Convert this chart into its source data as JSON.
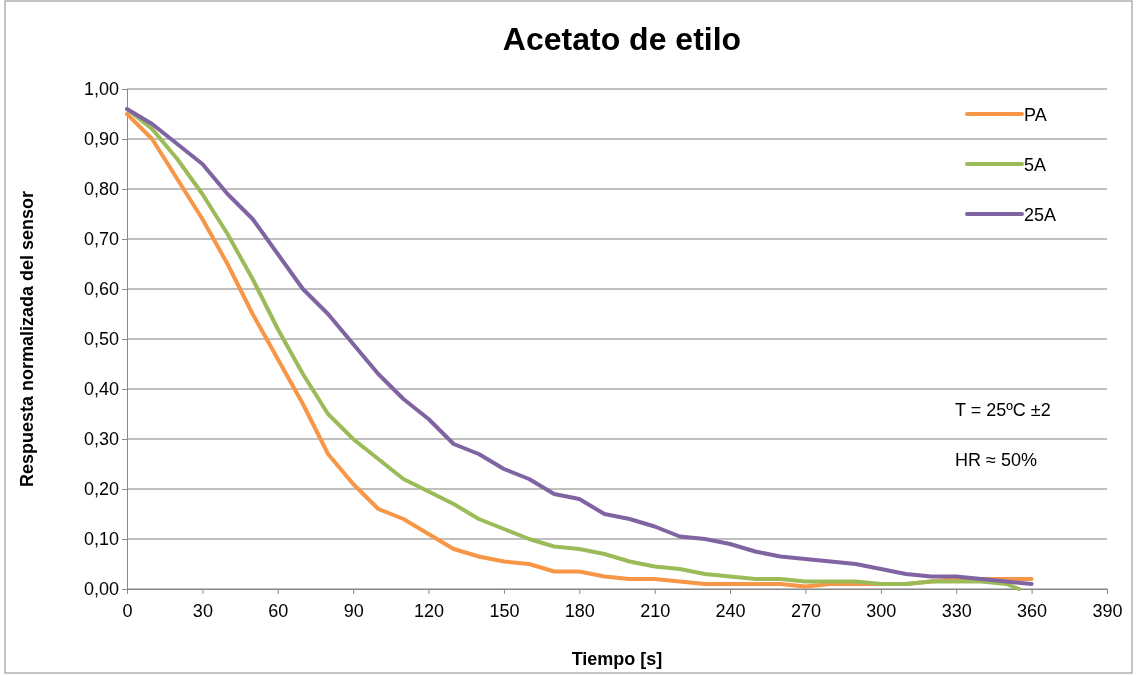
{
  "chart_data": {
    "type": "line",
    "title": "Acetato de etilo",
    "xlabel": "Tiempo [s]",
    "ylabel": "Respuesta normalizada del sensor",
    "annotations": [
      "T = 25ºC ±2",
      "HR ≈ 50%"
    ],
    "xlim": [
      0,
      390
    ],
    "xticks": [
      0,
      30,
      60,
      90,
      120,
      150,
      180,
      210,
      240,
      270,
      300,
      330,
      360,
      390
    ],
    "ylim": [
      0,
      1
    ],
    "yticks": [
      {
        "value": 0,
        "label": "0,00"
      },
      {
        "value": 0.1,
        "label": "0,10"
      },
      {
        "value": 0.2,
        "label": "0,20"
      },
      {
        "value": 0.3,
        "label": "0,30"
      },
      {
        "value": 0.4,
        "label": "0,40"
      },
      {
        "value": 0.5,
        "label": "0,50"
      },
      {
        "value": 0.6,
        "label": "0,60"
      },
      {
        "value": 0.7,
        "label": "0,70"
      },
      {
        "value": 0.8,
        "label": "0,80"
      },
      {
        "value": 0.9,
        "label": "0,90"
      },
      {
        "value": 1,
        "label": "1,00"
      }
    ],
    "grid": "y",
    "legend": "top right",
    "marker": "none",
    "line_style": "solid",
    "series": [
      {
        "name": "PA",
        "color": "#f79646",
        "x": [
          0,
          10,
          20,
          30,
          40,
          50,
          60,
          70,
          80,
          90,
          100,
          110,
          120,
          130,
          140,
          150,
          160,
          170,
          180,
          190,
          200,
          210,
          220,
          230,
          240,
          250,
          260,
          270,
          280,
          290,
          300,
          310,
          320,
          330,
          340,
          350,
          360
        ],
        "values": [
          0.95,
          0.9,
          0.82,
          0.74,
          0.65,
          0.55,
          0.46,
          0.37,
          0.27,
          0.21,
          0.16,
          0.14,
          0.11,
          0.08,
          0.065,
          0.055,
          0.05,
          0.035,
          0.035,
          0.025,
          0.02,
          0.02,
          0.015,
          0.01,
          0.01,
          0.01,
          0.01,
          0.005,
          0.01,
          0.01,
          0.01,
          0.01,
          0.015,
          0.02,
          0.02,
          0.02,
          0.02
        ]
      },
      {
        "name": "5A",
        "color": "#9bbb59",
        "x": [
          0,
          10,
          20,
          30,
          40,
          50,
          60,
          70,
          80,
          90,
          100,
          110,
          120,
          130,
          140,
          150,
          160,
          170,
          180,
          190,
          200,
          210,
          220,
          230,
          240,
          250,
          260,
          270,
          280,
          290,
          300,
          310,
          320,
          330,
          340,
          350,
          355
        ],
        "values": [
          0.96,
          0.92,
          0.86,
          0.79,
          0.71,
          0.62,
          0.52,
          0.43,
          0.35,
          0.3,
          0.26,
          0.22,
          0.195,
          0.17,
          0.14,
          0.12,
          0.1,
          0.085,
          0.08,
          0.07,
          0.055,
          0.045,
          0.04,
          0.03,
          0.025,
          0.02,
          0.02,
          0.015,
          0.015,
          0.015,
          0.01,
          0.01,
          0.015,
          0.015,
          0.015,
          0.01,
          0
        ]
      },
      {
        "name": "25A",
        "color": "#8064a2",
        "x": [
          0,
          10,
          20,
          30,
          40,
          50,
          60,
          70,
          80,
          90,
          100,
          110,
          120,
          130,
          140,
          150,
          160,
          170,
          180,
          190,
          200,
          210,
          220,
          230,
          240,
          250,
          260,
          270,
          280,
          290,
          300,
          310,
          320,
          330,
          340,
          350,
          360
        ],
        "values": [
          0.96,
          0.93,
          0.89,
          0.85,
          0.79,
          0.74,
          0.67,
          0.6,
          0.55,
          0.49,
          0.43,
          0.38,
          0.34,
          0.29,
          0.27,
          0.24,
          0.22,
          0.19,
          0.18,
          0.15,
          0.14,
          0.125,
          0.105,
          0.1,
          0.09,
          0.075,
          0.065,
          0.06,
          0.055,
          0.05,
          0.04,
          0.03,
          0.025,
          0.025,
          0.02,
          0.015,
          0.01
        ]
      }
    ]
  }
}
